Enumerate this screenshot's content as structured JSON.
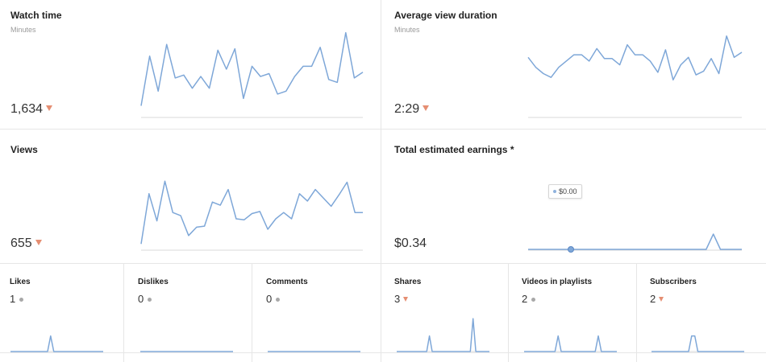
{
  "colors": {
    "line": "#7ea7d8",
    "baseline": "#dadada",
    "down": "#e58e72",
    "neutral": "#a8a8a8"
  },
  "watch_time": {
    "title": "Watch time",
    "subtitle": "Minutes",
    "value": "1,634",
    "trend": "down",
    "series": [
      8,
      42,
      18,
      50,
      27,
      29,
      20,
      28,
      20,
      46,
      33,
      47,
      13,
      35,
      28,
      30,
      16,
      18,
      28,
      35,
      35,
      48,
      26,
      24,
      58,
      27,
      31
    ]
  },
  "avg_view_duration": {
    "title": "Average view duration",
    "subtitle": "Minutes",
    "value": "2:29",
    "trend": "down",
    "series": [
      48,
      40,
      35,
      32,
      40,
      45,
      50,
      50,
      45,
      55,
      47,
      47,
      42,
      58,
      50,
      50,
      45,
      36,
      54,
      30,
      42,
      48,
      34,
      37,
      47,
      35,
      65,
      48,
      52
    ]
  },
  "views": {
    "title": "Views",
    "subtitle": "",
    "value": "655",
    "trend": "down",
    "series": [
      6,
      54,
      28,
      66,
      36,
      33,
      14,
      22,
      23,
      46,
      43,
      58,
      30,
      29,
      35,
      37,
      20,
      30,
      36,
      30,
      54,
      47,
      58,
      50,
      42,
      53,
      65,
      36,
      36
    ]
  },
  "earnings": {
    "title": "Total estimated earnings *",
    "value": "$0.34",
    "tooltip": "$0.00",
    "series": [
      0,
      0,
      0,
      0,
      0,
      0,
      0,
      0,
      0,
      0,
      0,
      0,
      0,
      0,
      0,
      0,
      0,
      0,
      0,
      0,
      0,
      0,
      0,
      0,
      0,
      0,
      16,
      0,
      0,
      0,
      0
    ]
  },
  "small_metrics": [
    {
      "title": "Likes",
      "value": "1",
      "trend": "neutral",
      "series": [
        0,
        0,
        0,
        0,
        0,
        0,
        0,
        0,
        0,
        0,
        0,
        0,
        0,
        18,
        0,
        0,
        0,
        0,
        0,
        0,
        0,
        0,
        0,
        0,
        0,
        0,
        0,
        0,
        0,
        0,
        0
      ]
    },
    {
      "title": "Dislikes",
      "value": "0",
      "trend": "neutral",
      "series": [
        0,
        0,
        0,
        0,
        0,
        0,
        0,
        0,
        0,
        0,
        0,
        0,
        0,
        0,
        0,
        0,
        0,
        0,
        0,
        0,
        0,
        0,
        0,
        0,
        0,
        0,
        0,
        0,
        0,
        0,
        0
      ]
    },
    {
      "title": "Comments",
      "value": "0",
      "trend": "neutral",
      "series": [
        0,
        0,
        0,
        0,
        0,
        0,
        0,
        0,
        0,
        0,
        0,
        0,
        0,
        0,
        0,
        0,
        0,
        0,
        0,
        0,
        0,
        0,
        0,
        0,
        0,
        0,
        0,
        0,
        0,
        0,
        0
      ]
    },
    {
      "title": "Shares",
      "value": "3",
      "trend": "down",
      "series": [
        0,
        0,
        0,
        0,
        0,
        0,
        0,
        0,
        0,
        0,
        0,
        0,
        18,
        0,
        0,
        0,
        0,
        0,
        0,
        0,
        0,
        0,
        0,
        0,
        0,
        0,
        0,
        0,
        38,
        0,
        0,
        0,
        0,
        0,
        0
      ]
    },
    {
      "title": "Videos in playlists",
      "value": "2",
      "trend": "neutral",
      "series": [
        0,
        0,
        0,
        0,
        0,
        0,
        0,
        0,
        0,
        0,
        0,
        18,
        0,
        0,
        0,
        0,
        0,
        0,
        0,
        0,
        0,
        0,
        0,
        0,
        18,
        0,
        0,
        0,
        0,
        0,
        0
      ]
    },
    {
      "title": "Subscribers",
      "value": "2",
      "trend": "down",
      "series": [
        0,
        0,
        0,
        0,
        0,
        0,
        0,
        0,
        0,
        0,
        0,
        0,
        0,
        18,
        18,
        0,
        0,
        0,
        0,
        0,
        0,
        0,
        0,
        0,
        0,
        0,
        0,
        0,
        0,
        0,
        0
      ]
    }
  ]
}
